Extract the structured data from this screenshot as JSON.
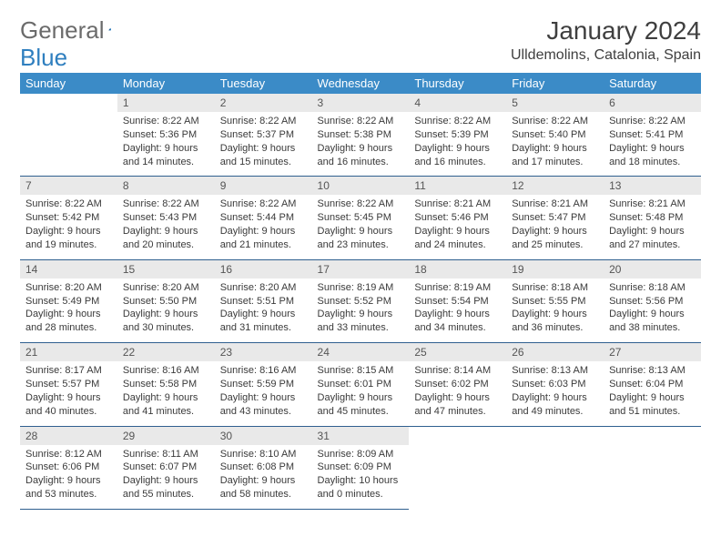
{
  "logo": {
    "text1": "General",
    "text2": "Blue"
  },
  "title": "January 2024",
  "location": "Ulldemolins, Catalonia, Spain",
  "colors": {
    "header_bg": "#3b8bc7",
    "header_fg": "#ffffff",
    "daynum_bg": "#e9e9e9",
    "row_border": "#2f5f8f",
    "logo_gray": "#6b6b6b",
    "logo_blue": "#2f7fbf",
    "text": "#3a3a3a"
  },
  "weekdays": [
    "Sunday",
    "Monday",
    "Tuesday",
    "Wednesday",
    "Thursday",
    "Friday",
    "Saturday"
  ],
  "weeks": [
    [
      null,
      {
        "n": "1",
        "sr": "8:22 AM",
        "ss": "5:36 PM",
        "dl": "9 hours and 14 minutes."
      },
      {
        "n": "2",
        "sr": "8:22 AM",
        "ss": "5:37 PM",
        "dl": "9 hours and 15 minutes."
      },
      {
        "n": "3",
        "sr": "8:22 AM",
        "ss": "5:38 PM",
        "dl": "9 hours and 16 minutes."
      },
      {
        "n": "4",
        "sr": "8:22 AM",
        "ss": "5:39 PM",
        "dl": "9 hours and 16 minutes."
      },
      {
        "n": "5",
        "sr": "8:22 AM",
        "ss": "5:40 PM",
        "dl": "9 hours and 17 minutes."
      },
      {
        "n": "6",
        "sr": "8:22 AM",
        "ss": "5:41 PM",
        "dl": "9 hours and 18 minutes."
      }
    ],
    [
      {
        "n": "7",
        "sr": "8:22 AM",
        "ss": "5:42 PM",
        "dl": "9 hours and 19 minutes."
      },
      {
        "n": "8",
        "sr": "8:22 AM",
        "ss": "5:43 PM",
        "dl": "9 hours and 20 minutes."
      },
      {
        "n": "9",
        "sr": "8:22 AM",
        "ss": "5:44 PM",
        "dl": "9 hours and 21 minutes."
      },
      {
        "n": "10",
        "sr": "8:22 AM",
        "ss": "5:45 PM",
        "dl": "9 hours and 23 minutes."
      },
      {
        "n": "11",
        "sr": "8:21 AM",
        "ss": "5:46 PM",
        "dl": "9 hours and 24 minutes."
      },
      {
        "n": "12",
        "sr": "8:21 AM",
        "ss": "5:47 PM",
        "dl": "9 hours and 25 minutes."
      },
      {
        "n": "13",
        "sr": "8:21 AM",
        "ss": "5:48 PM",
        "dl": "9 hours and 27 minutes."
      }
    ],
    [
      {
        "n": "14",
        "sr": "8:20 AM",
        "ss": "5:49 PM",
        "dl": "9 hours and 28 minutes."
      },
      {
        "n": "15",
        "sr": "8:20 AM",
        "ss": "5:50 PM",
        "dl": "9 hours and 30 minutes."
      },
      {
        "n": "16",
        "sr": "8:20 AM",
        "ss": "5:51 PM",
        "dl": "9 hours and 31 minutes."
      },
      {
        "n": "17",
        "sr": "8:19 AM",
        "ss": "5:52 PM",
        "dl": "9 hours and 33 minutes."
      },
      {
        "n": "18",
        "sr": "8:19 AM",
        "ss": "5:54 PM",
        "dl": "9 hours and 34 minutes."
      },
      {
        "n": "19",
        "sr": "8:18 AM",
        "ss": "5:55 PM",
        "dl": "9 hours and 36 minutes."
      },
      {
        "n": "20",
        "sr": "8:18 AM",
        "ss": "5:56 PM",
        "dl": "9 hours and 38 minutes."
      }
    ],
    [
      {
        "n": "21",
        "sr": "8:17 AM",
        "ss": "5:57 PM",
        "dl": "9 hours and 40 minutes."
      },
      {
        "n": "22",
        "sr": "8:16 AM",
        "ss": "5:58 PM",
        "dl": "9 hours and 41 minutes."
      },
      {
        "n": "23",
        "sr": "8:16 AM",
        "ss": "5:59 PM",
        "dl": "9 hours and 43 minutes."
      },
      {
        "n": "24",
        "sr": "8:15 AM",
        "ss": "6:01 PM",
        "dl": "9 hours and 45 minutes."
      },
      {
        "n": "25",
        "sr": "8:14 AM",
        "ss": "6:02 PM",
        "dl": "9 hours and 47 minutes."
      },
      {
        "n": "26",
        "sr": "8:13 AM",
        "ss": "6:03 PM",
        "dl": "9 hours and 49 minutes."
      },
      {
        "n": "27",
        "sr": "8:13 AM",
        "ss": "6:04 PM",
        "dl": "9 hours and 51 minutes."
      }
    ],
    [
      {
        "n": "28",
        "sr": "8:12 AM",
        "ss": "6:06 PM",
        "dl": "9 hours and 53 minutes."
      },
      {
        "n": "29",
        "sr": "8:11 AM",
        "ss": "6:07 PM",
        "dl": "9 hours and 55 minutes."
      },
      {
        "n": "30",
        "sr": "8:10 AM",
        "ss": "6:08 PM",
        "dl": "9 hours and 58 minutes."
      },
      {
        "n": "31",
        "sr": "8:09 AM",
        "ss": "6:09 PM",
        "dl": "10 hours and 0 minutes."
      },
      null,
      null,
      null
    ]
  ],
  "labels": {
    "sunrise": "Sunrise:",
    "sunset": "Sunset:",
    "daylight": "Daylight:"
  }
}
